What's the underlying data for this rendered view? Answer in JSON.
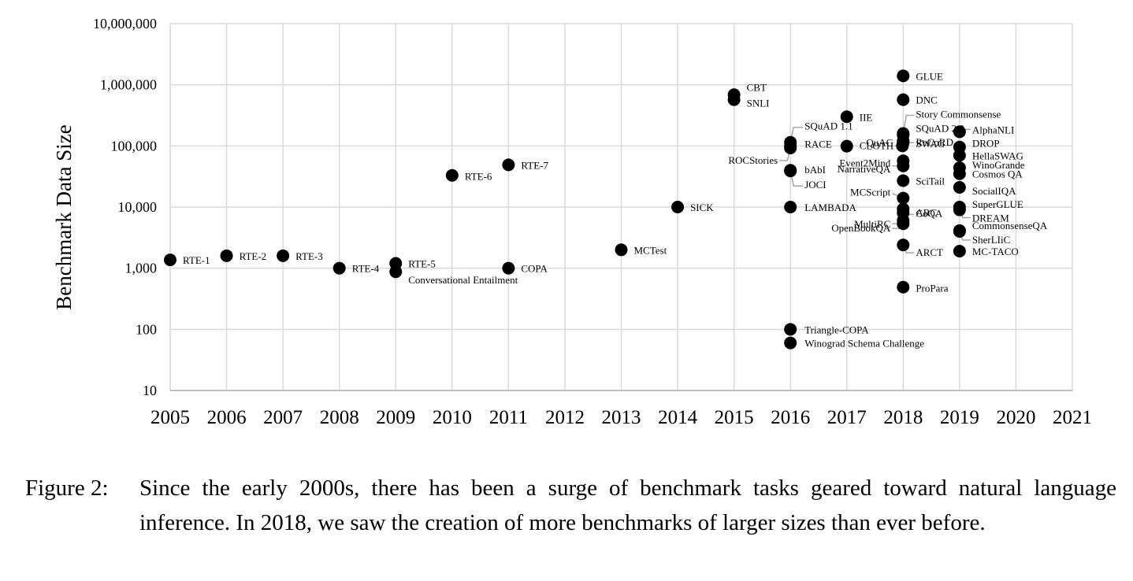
{
  "chart_data": {
    "type": "scatter",
    "ylabel": "Benchmark Data Size",
    "xlabel": "",
    "yscale": "log",
    "xlim": [
      2005,
      2021
    ],
    "ylim": [
      10,
      10000000
    ],
    "grid": true,
    "x_ticks": [
      "2005",
      "2006",
      "2007",
      "2008",
      "2009",
      "2010",
      "2011",
      "2012",
      "2013",
      "2014",
      "2015",
      "2016",
      "2017",
      "2018",
      "2019",
      "2020",
      "2021"
    ],
    "y_ticks": [
      "10",
      "100",
      "1,000",
      "10,000",
      "100,000",
      "1,000,000",
      "10,000,000"
    ],
    "points": [
      {
        "label": "RTE-1",
        "x": 2005,
        "y": 1367
      },
      {
        "label": "RTE-2",
        "x": 2006,
        "y": 1600
      },
      {
        "label": "RTE-3",
        "x": 2007,
        "y": 1600
      },
      {
        "label": "RTE-4",
        "x": 2008,
        "y": 1000
      },
      {
        "label": "RTE-5",
        "x": 2009,
        "y": 1200
      },
      {
        "label": "Conversational Entailment",
        "x": 2009,
        "y": 875
      },
      {
        "label": "RTE-6",
        "x": 2010,
        "y": 33000
      },
      {
        "label": "RTE-7",
        "x": 2011,
        "y": 49000
      },
      {
        "label": "COPA",
        "x": 2011,
        "y": 1000
      },
      {
        "label": "MCTest",
        "x": 2013,
        "y": 2000
      },
      {
        "label": "SICK",
        "x": 2014,
        "y": 10000
      },
      {
        "label": "CBT",
        "x": 2015,
        "y": 688000
      },
      {
        "label": "SNLI",
        "x": 2015,
        "y": 570000
      },
      {
        "label": "SQuAD 1.1",
        "x": 2016,
        "y": 108000
      },
      {
        "label": "RACE",
        "x": 2016,
        "y": 100000
      },
      {
        "label": "ROCStories",
        "x": 2016,
        "y": 98000
      },
      {
        "label": "bAbI",
        "x": 2016,
        "y": 40000
      },
      {
        "label": "JOCI",
        "x": 2016,
        "y": 39000
      },
      {
        "label": "LAMBADA",
        "x": 2016,
        "y": 10000
      },
      {
        "label": "Triangle-COPA",
        "x": 2016,
        "y": 100
      },
      {
        "label": "Winograd Schema Challenge",
        "x": 2016,
        "y": 60
      },
      {
        "label": "IIE",
        "x": 2017,
        "y": 300000
      },
      {
        "label": "CLOTH",
        "x": 2017,
        "y": 99000
      },
      {
        "label": "GLUE",
        "x": 2018,
        "y": 1400000
      },
      {
        "label": "DNC",
        "x": 2018,
        "y": 570000
      },
      {
        "label": "Story Commonsense",
        "x": 2018,
        "y": 160000
      },
      {
        "label": "QuAC",
        "x": 2018,
        "y": 100000
      },
      {
        "label": "SQuAD 2.0",
        "x": 2018,
        "y": 150000
      },
      {
        "label": "ReCoRD",
        "x": 2018,
        "y": 120000
      },
      {
        "label": "SWAG",
        "x": 2018,
        "y": 113000
      },
      {
        "label": "Event2Mind",
        "x": 2018,
        "y": 57000
      },
      {
        "label": "NarrativeQA",
        "x": 2018,
        "y": 47000
      },
      {
        "label": "SciTail",
        "x": 2018,
        "y": 27000
      },
      {
        "label": "MCScript",
        "x": 2018,
        "y": 14000
      },
      {
        "label": "CoQA",
        "x": 2018,
        "y": 8000
      },
      {
        "label": "MultiRC",
        "x": 2018,
        "y": 6000
      },
      {
        "label": "OpenBookQA",
        "x": 2018,
        "y": 6000
      },
      {
        "label": "ARC",
        "x": 2018,
        "y": 7800
      },
      {
        "label": "ARCT",
        "x": 2018,
        "y": 2400
      },
      {
        "label": "ProPara",
        "x": 2018,
        "y": 490
      },
      {
        "label": "AlphaNLI",
        "x": 2019,
        "y": 170000
      },
      {
        "label": "DROP",
        "x": 2019,
        "y": 96000
      },
      {
        "label": "HellaSWAG",
        "x": 2019,
        "y": 70000
      },
      {
        "label": "WinoGrande",
        "x": 2019,
        "y": 44000
      },
      {
        "label": "Cosmos QA",
        "x": 2019,
        "y": 35000
      },
      {
        "label": "SocialIQA",
        "x": 2019,
        "y": 21000
      },
      {
        "label": "SuperGLUE",
        "x": 2019,
        "y": 10000
      },
      {
        "label": "DREAM",
        "x": 2019,
        "y": 9000
      },
      {
        "label": "CommonsenseQA",
        "x": 2019,
        "y": 4000
      },
      {
        "label": "SherLIiC",
        "x": 2019,
        "y": 4000
      },
      {
        "label": "MC-TACO",
        "x": 2019,
        "y": 1900
      }
    ]
  },
  "caption": {
    "number": "Figure 2:",
    "text": "Since the early 2000s, there has been a surge of benchmark tasks geared toward natural language inference. In 2018, we saw the creation of more benchmarks of larger sizes than ever before."
  }
}
